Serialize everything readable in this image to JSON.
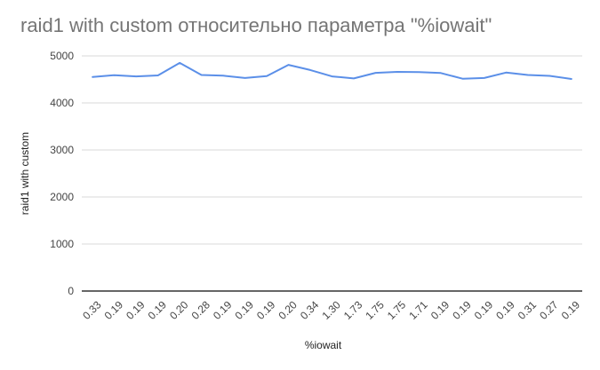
{
  "chart_data": {
    "type": "line",
    "title": "raid1 with custom относительно параметра \"%iowait\"",
    "xlabel": "%iowait",
    "ylabel": "raid1 with custom",
    "categories": [
      "0.33",
      "0.19",
      "0.19",
      "0.19",
      "0.20",
      "0.28",
      "0.19",
      "0.19",
      "0.19",
      "0.20",
      "0.34",
      "1.30",
      "1.73",
      "1.75",
      "1.75",
      "1.71",
      "0.19",
      "0.19",
      "0.19",
      "0.19",
      "0.31",
      "0.27",
      "0.19"
    ],
    "series": [
      {
        "values": [
          4550,
          4590,
          4565,
          4585,
          4850,
          4595,
          4580,
          4530,
          4570,
          4810,
          4700,
          4565,
          4520,
          4640,
          4660,
          4655,
          4635,
          4515,
          4530,
          4645,
          4595,
          4575,
          4510
        ]
      }
    ],
    "ylim": [
      0,
      5000
    ],
    "yticks": [
      0,
      1000,
      2000,
      3000,
      4000,
      5000
    ],
    "grid": true,
    "colors": {
      "line": "#5b8fe8",
      "grid": "#d9d9d9",
      "axis": "#333333"
    }
  }
}
